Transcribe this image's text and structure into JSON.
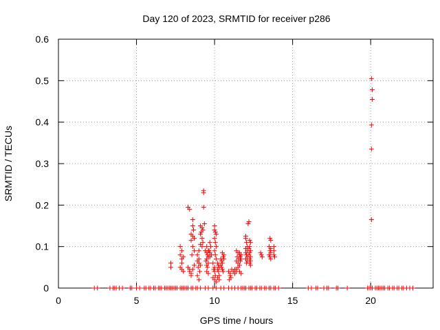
{
  "chart_data": {
    "type": "scatter",
    "title": "Day 120 of 2023, SRMTID for receiver p286",
    "xlabel": "GPS time / hours",
    "ylabel": "SRMTID / TECUs",
    "xlim": [
      0,
      24
    ],
    "ylim": [
      0,
      0.6
    ],
    "xticks": [
      0,
      5,
      10,
      15,
      20
    ],
    "yticks": [
      0,
      0.1,
      0.2,
      0.3,
      0.4,
      0.5,
      0.6
    ],
    "xtick_labels": [
      "0",
      "5",
      "10",
      "15",
      "20"
    ],
    "ytick_labels": [
      "0",
      "0.1",
      "0.2",
      "0.3",
      "0.4",
      "0.5",
      "0.6"
    ],
    "grid": true,
    "marker": "+",
    "color": "#ff0000",
    "series": [
      {
        "name": "SRMTID",
        "points": [
          [
            2.3,
            0
          ],
          [
            2.5,
            0
          ],
          [
            3.3,
            0
          ],
          [
            3.5,
            0
          ],
          [
            3.6,
            0
          ],
          [
            3.7,
            0
          ],
          [
            3.9,
            0
          ],
          [
            4.1,
            0
          ],
          [
            4.6,
            0
          ],
          [
            4.7,
            0
          ],
          [
            5.0,
            0
          ],
          [
            5.2,
            0
          ],
          [
            5.5,
            0
          ],
          [
            5.6,
            0
          ],
          [
            5.8,
            0
          ],
          [
            5.9,
            0
          ],
          [
            6.1,
            0
          ],
          [
            6.2,
            0
          ],
          [
            6.4,
            0
          ],
          [
            6.5,
            0
          ],
          [
            6.6,
            0
          ],
          [
            6.8,
            0
          ],
          [
            6.9,
            0
          ],
          [
            7.0,
            0
          ],
          [
            7.1,
            0
          ],
          [
            7.2,
            0
          ],
          [
            7.3,
            0
          ],
          [
            7.4,
            0
          ],
          [
            7.5,
            0
          ],
          [
            7.6,
            0
          ],
          [
            7.8,
            0
          ],
          [
            7.9,
            0
          ],
          [
            8.0,
            0
          ],
          [
            8.1,
            0
          ],
          [
            8.2,
            0
          ],
          [
            8.3,
            0
          ],
          [
            8.5,
            0
          ],
          [
            8.6,
            0
          ],
          [
            8.8,
            0
          ],
          [
            8.9,
            0
          ],
          [
            9.1,
            0
          ],
          [
            9.4,
            0
          ],
          [
            9.6,
            0
          ],
          [
            9.9,
            0
          ],
          [
            10.1,
            0
          ],
          [
            10.4,
            0
          ],
          [
            10.6,
            0
          ],
          [
            10.9,
            0
          ],
          [
            11.1,
            0
          ],
          [
            11.3,
            0
          ],
          [
            11.5,
            0
          ],
          [
            11.7,
            0
          ],
          [
            11.8,
            0
          ],
          [
            11.9,
            0
          ],
          [
            12.0,
            0
          ],
          [
            12.2,
            0
          ],
          [
            12.3,
            0
          ],
          [
            12.4,
            0
          ],
          [
            12.6,
            0
          ],
          [
            12.7,
            0
          ],
          [
            12.9,
            0
          ],
          [
            13.0,
            0
          ],
          [
            13.2,
            0
          ],
          [
            13.3,
            0
          ],
          [
            13.5,
            0
          ],
          [
            13.6,
            0
          ],
          [
            13.8,
            0
          ],
          [
            13.9,
            0
          ],
          [
            14.1,
            0
          ],
          [
            16.0,
            0
          ],
          [
            16.2,
            0
          ],
          [
            16.5,
            0
          ],
          [
            16.6,
            0
          ],
          [
            17.0,
            0
          ],
          [
            17.2,
            0
          ],
          [
            17.3,
            0
          ],
          [
            17.8,
            0
          ],
          [
            17.9,
            0
          ],
          [
            18.5,
            0
          ],
          [
            19.8,
            0
          ],
          [
            19.9,
            0
          ],
          [
            20.0,
            0
          ],
          [
            20.1,
            0
          ],
          [
            20.3,
            0
          ],
          [
            20.4,
            0
          ],
          [
            20.5,
            0
          ],
          [
            20.6,
            0
          ],
          [
            20.7,
            0
          ],
          [
            20.8,
            0
          ],
          [
            20.9,
            0
          ],
          [
            21.1,
            0
          ],
          [
            21.2,
            0
          ],
          [
            21.4,
            0
          ],
          [
            21.5,
            0
          ],
          [
            21.7,
            0
          ],
          [
            21.8,
            0
          ],
          [
            22.0,
            0
          ],
          [
            22.1,
            0
          ],
          [
            22.3,
            0
          ],
          [
            22.5,
            0
          ],
          [
            22.7,
            0
          ],
          [
            7.2,
            0.06
          ],
          [
            7.2,
            0.05
          ],
          [
            7.8,
            0.1
          ],
          [
            7.8,
            0.08
          ],
          [
            7.9,
            0.07
          ],
          [
            7.9,
            0.06
          ],
          [
            7.8,
            0.05
          ],
          [
            7.9,
            0.045
          ],
          [
            8.0,
            0.04
          ],
          [
            8.0,
            0.075
          ],
          [
            7.9,
            0.09
          ],
          [
            8.3,
            0.195
          ],
          [
            8.4,
            0.19
          ],
          [
            8.3,
            0.05
          ],
          [
            8.4,
            0.045
          ],
          [
            8.4,
            0.04
          ],
          [
            8.5,
            0.035
          ],
          [
            8.5,
            0.03
          ],
          [
            8.6,
            0.165
          ],
          [
            8.6,
            0.15
          ],
          [
            8.65,
            0.14
          ],
          [
            8.5,
            0.13
          ],
          [
            8.6,
            0.125
          ],
          [
            8.7,
            0.12
          ],
          [
            8.5,
            0.115
          ],
          [
            8.6,
            0.1
          ],
          [
            8.7,
            0.09
          ],
          [
            8.55,
            0.08
          ],
          [
            8.7,
            0.055
          ],
          [
            8.6,
            0.045
          ],
          [
            9.0,
            0.09
          ],
          [
            8.9,
            0.08
          ],
          [
            9.0,
            0.07
          ],
          [
            8.9,
            0.065
          ],
          [
            9.0,
            0.06
          ],
          [
            9.1,
            0.055
          ],
          [
            8.95,
            0.05
          ],
          [
            9.05,
            0.04
          ],
          [
            8.9,
            0.03
          ],
          [
            9.0,
            0.02
          ],
          [
            9.1,
            0.15
          ],
          [
            9.2,
            0.145
          ],
          [
            9.15,
            0.135
          ],
          [
            9.1,
            0.13
          ],
          [
            9.2,
            0.12
          ],
          [
            9.25,
            0.11
          ],
          [
            9.1,
            0.105
          ],
          [
            9.2,
            0.1
          ],
          [
            9.3,
            0.235
          ],
          [
            9.3,
            0.23
          ],
          [
            9.3,
            0.195
          ],
          [
            9.35,
            0.155
          ],
          [
            9.25,
            0.14
          ],
          [
            9.4,
            0.09
          ],
          [
            9.5,
            0.1
          ],
          [
            9.6,
            0.09
          ],
          [
            9.5,
            0.085
          ],
          [
            9.55,
            0.08
          ],
          [
            9.6,
            0.075
          ],
          [
            9.5,
            0.07
          ],
          [
            9.45,
            0.065
          ],
          [
            9.6,
            0.06
          ],
          [
            9.5,
            0.055
          ],
          [
            9.55,
            0.05
          ],
          [
            9.5,
            0.04
          ],
          [
            9.6,
            0.035
          ],
          [
            9.7,
            0.11
          ],
          [
            9.75,
            0.1
          ],
          [
            9.65,
            0.09
          ],
          [
            9.7,
            0.085
          ],
          [
            9.8,
            0.08
          ],
          [
            9.7,
            0.075
          ],
          [
            9.9,
            0.06
          ],
          [
            10.0,
            0.05
          ],
          [
            9.95,
            0.045
          ],
          [
            10.0,
            0.04
          ],
          [
            10.05,
            0.03
          ],
          [
            9.9,
            0.025
          ],
          [
            10.0,
            0.02
          ],
          [
            10.1,
            0.015
          ],
          [
            10.0,
            0.15
          ],
          [
            10.0,
            0.14
          ],
          [
            10.05,
            0.135
          ],
          [
            10.1,
            0.13
          ],
          [
            10.0,
            0.12
          ],
          [
            10.05,
            0.11
          ],
          [
            10.1,
            0.1
          ],
          [
            10.0,
            0.09
          ],
          [
            10.05,
            0.08
          ],
          [
            10.1,
            0.07
          ],
          [
            10.2,
            0.06
          ],
          [
            10.25,
            0.055
          ],
          [
            10.3,
            0.05
          ],
          [
            10.2,
            0.045
          ],
          [
            10.25,
            0.04
          ],
          [
            10.3,
            0.03
          ],
          [
            10.2,
            0.025
          ],
          [
            10.3,
            0.02
          ],
          [
            10.4,
            0.07
          ],
          [
            10.45,
            0.065
          ],
          [
            10.5,
            0.06
          ],
          [
            10.4,
            0.055
          ],
          [
            10.45,
            0.05
          ],
          [
            10.5,
            0.045
          ],
          [
            10.55,
            0.04
          ],
          [
            10.5,
            0.085
          ],
          [
            10.6,
            0.08
          ],
          [
            10.55,
            0.075
          ],
          [
            10.6,
            0.07
          ],
          [
            10.9,
            0.04
          ],
          [
            11.0,
            0.035
          ],
          [
            11.0,
            0.03
          ],
          [
            11.05,
            0.025
          ],
          [
            10.95,
            0.02
          ],
          [
            11.1,
            0.045
          ],
          [
            11.2,
            0.04
          ],
          [
            11.3,
            0.045
          ],
          [
            11.4,
            0.04
          ],
          [
            11.3,
            0.035
          ],
          [
            11.4,
            0.09
          ],
          [
            11.5,
            0.085
          ],
          [
            11.6,
            0.08
          ],
          [
            11.45,
            0.075
          ],
          [
            11.55,
            0.07
          ],
          [
            11.4,
            0.065
          ],
          [
            11.5,
            0.06
          ],
          [
            11.6,
            0.055
          ],
          [
            11.5,
            0.05
          ],
          [
            11.4,
            0.045
          ],
          [
            11.6,
            0.04
          ],
          [
            11.7,
            0.035
          ],
          [
            11.6,
            0.085
          ],
          [
            11.7,
            0.08
          ],
          [
            11.65,
            0.075
          ],
          [
            11.7,
            0.07
          ],
          [
            11.65,
            0.065
          ],
          [
            12.0,
            0.125
          ],
          [
            12.0,
            0.12
          ],
          [
            12.05,
            0.11
          ],
          [
            12.1,
            0.1
          ],
          [
            12.0,
            0.095
          ],
          [
            12.1,
            0.09
          ],
          [
            12.0,
            0.085
          ],
          [
            12.05,
            0.08
          ],
          [
            12.1,
            0.075
          ],
          [
            12.0,
            0.07
          ],
          [
            12.1,
            0.065
          ],
          [
            12.05,
            0.06
          ],
          [
            12.2,
            0.16
          ],
          [
            12.15,
            0.155
          ],
          [
            12.25,
            0.115
          ],
          [
            12.3,
            0.11
          ],
          [
            12.25,
            0.1
          ],
          [
            12.2,
            0.095
          ],
          [
            12.3,
            0.09
          ],
          [
            12.25,
            0.085
          ],
          [
            12.2,
            0.08
          ],
          [
            12.3,
            0.075
          ],
          [
            12.25,
            0.07
          ],
          [
            12.3,
            0.065
          ],
          [
            12.25,
            0.06
          ],
          [
            12.3,
            0.055
          ],
          [
            12.95,
            0.085
          ],
          [
            13.0,
            0.08
          ],
          [
            13.05,
            0.075
          ],
          [
            13.55,
            0.12
          ],
          [
            13.6,
            0.115
          ],
          [
            13.5,
            0.1
          ],
          [
            13.6,
            0.095
          ],
          [
            13.55,
            0.09
          ],
          [
            13.6,
            0.085
          ],
          [
            13.5,
            0.08
          ],
          [
            13.55,
            0.075
          ],
          [
            13.6,
            0.07
          ],
          [
            13.8,
            0.1
          ],
          [
            13.8,
            0.09
          ],
          [
            13.8,
            0.08
          ],
          [
            13.85,
            0.075
          ],
          [
            20.05,
            0.505
          ],
          [
            20.1,
            0.478
          ],
          [
            20.1,
            0.455
          ],
          [
            20.05,
            0.393
          ],
          [
            20.05,
            0.335
          ],
          [
            20.05,
            0.165
          ]
        ]
      }
    ]
  }
}
